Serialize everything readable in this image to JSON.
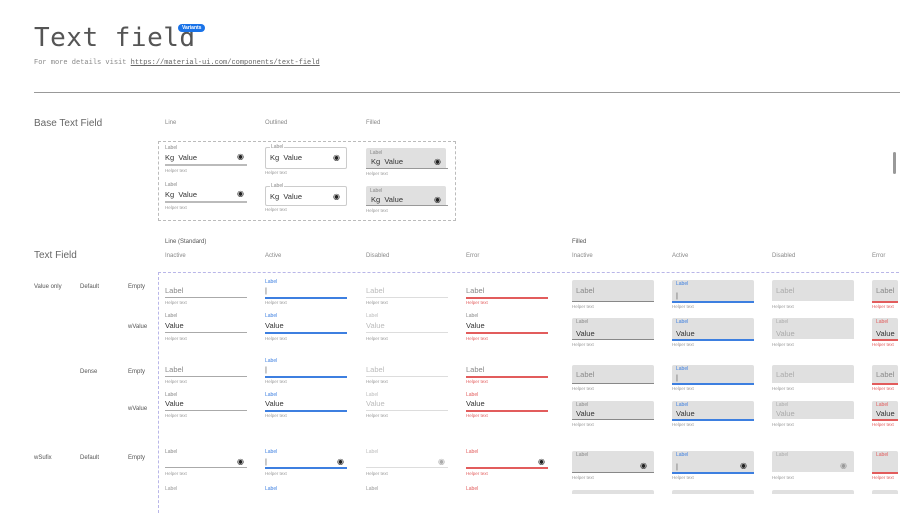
{
  "header": {
    "title": "Text field",
    "badge": "Variants",
    "details_prefix": "For more details visit",
    "details_link": "https://material-ui.com/components/text-field"
  },
  "base": {
    "title": "Base Text Field",
    "columns": [
      "Line",
      "Outlined",
      "Filled"
    ],
    "field": {
      "label": "Label",
      "prefix": "Kg",
      "value": "Value",
      "helper": "Helper text",
      "icon": "eye-icon"
    }
  },
  "text_field": {
    "title": "Text Field",
    "groups": [
      {
        "name": "Line (Standard)",
        "states": [
          "Inactive",
          "Active",
          "Disabled",
          "Error"
        ]
      },
      {
        "name": "Filled",
        "states": [
          "Inactive",
          "Active",
          "Disabled",
          "Error"
        ]
      }
    ],
    "rows": [
      {
        "type": "Value only",
        "size": "Default",
        "content": "Empty"
      },
      {
        "type": "",
        "size": "",
        "content": "wValue"
      },
      {
        "type": "",
        "size": "Dense",
        "content": "Empty"
      },
      {
        "type": "",
        "size": "",
        "content": "wValue"
      },
      {
        "type": "wSufix",
        "size": "Default",
        "content": "Empty"
      }
    ],
    "field": {
      "label": "Label",
      "value": "Value",
      "helper": "Helper text",
      "cursor": "|",
      "icon": "eye-icon"
    }
  },
  "colors": {
    "active": "#3d7fe0",
    "error": "#e25c5c",
    "filled_bg": "#e0e0e0"
  }
}
